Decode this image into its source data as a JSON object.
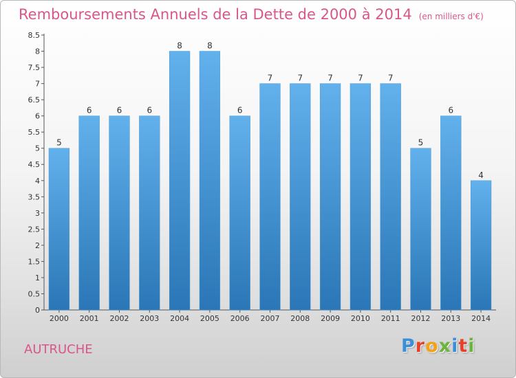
{
  "header": {
    "title": "Remboursements Annuels de la Dette de 2000 à 2014",
    "unit": "(en milliers d'€)"
  },
  "footer": {
    "commune": "AUTRUCHE",
    "logo_text": "Proxiti",
    "logo_colors": [
      "#3b8fd9",
      "#e8402a",
      "#f4a11a",
      "#6cb33f",
      "#3b8fd9",
      "#e8402a",
      "#6cb33f"
    ]
  },
  "colors": {
    "title": "#d9568a",
    "bar_top": "#62b0ec",
    "bar_bottom": "#2a76b6"
  },
  "chart_data": {
    "type": "bar",
    "categories": [
      "2000",
      "2001",
      "2002",
      "2003",
      "2004",
      "2005",
      "2006",
      "2007",
      "2008",
      "2009",
      "2010",
      "2011",
      "2012",
      "2013",
      "2014"
    ],
    "values": [
      5,
      6,
      6,
      6,
      8,
      8,
      6,
      7,
      7,
      7,
      7,
      7,
      5,
      6,
      4
    ],
    "data_labels": [
      "5",
      "6",
      "6",
      "6",
      "8",
      "8",
      "6",
      "7",
      "7",
      "7",
      "7",
      "7",
      "5",
      "6",
      "4"
    ],
    "title": "Remboursements Annuels de la Dette de 2000 à 2014",
    "xlabel": "",
    "ylabel": "",
    "ylim": [
      0,
      8.5
    ],
    "y_ticks": [
      0,
      0.5,
      1,
      1.5,
      2,
      2.5,
      3,
      3.5,
      4,
      4.5,
      5,
      5.5,
      6,
      6.5,
      7,
      7.5,
      8,
      8.5
    ],
    "y_tick_labels": [
      "0",
      "0.5",
      "1",
      "1.5",
      "2",
      "2.5",
      "3",
      "3.5",
      "4",
      "4.5",
      "5",
      "5.5",
      "6",
      "6.5",
      "7",
      "7.5",
      "8",
      "8.5"
    ],
    "grid": false,
    "legend": "none"
  }
}
